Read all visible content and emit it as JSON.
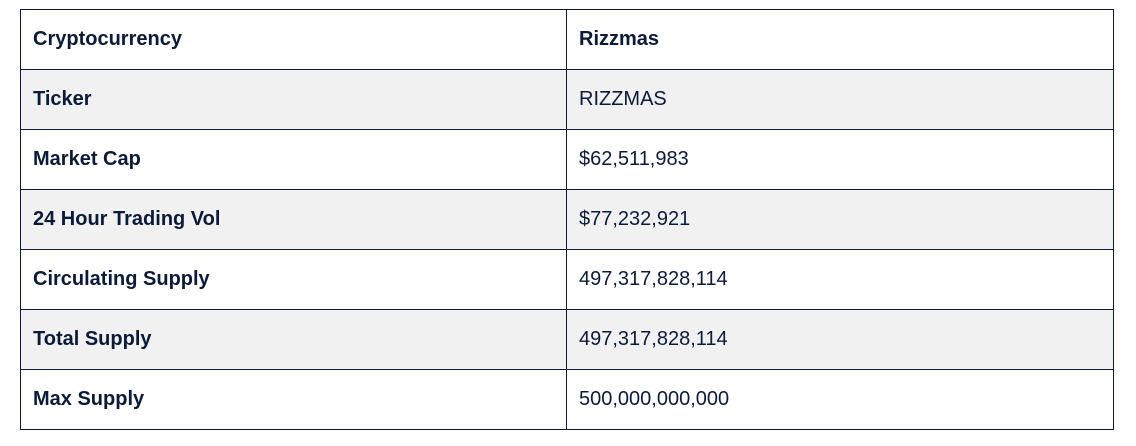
{
  "table": {
    "rows": [
      {
        "label": "Cryptocurrency",
        "value": "Rizzmas"
      },
      {
        "label": "Ticker",
        "value": "RIZZMAS"
      },
      {
        "label": "Market Cap",
        "value": "$62,511,983"
      },
      {
        "label": "24 Hour Trading Vol",
        "value": "$77,232,921"
      },
      {
        "label": "Circulating Supply",
        "value": "497,317,828,114"
      },
      {
        "label": "Total Supply",
        "value": "497,317,828,114"
      },
      {
        "label": "Max Supply",
        "value": "500,000,000,000"
      }
    ]
  }
}
